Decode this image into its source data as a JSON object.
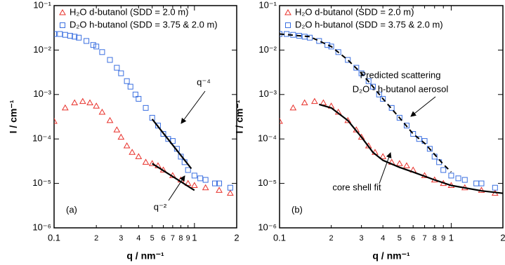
{
  "chart_data": [
    {
      "type": "scatter",
      "log_x": true,
      "log_y": true,
      "legend": "upper left",
      "panel": "(a)",
      "xlabel": "q / nm⁻¹",
      "ylabel": "I / cm⁻¹",
      "xlim": [
        0.1,
        2
      ],
      "ylim": [
        1e-06,
        0.1
      ],
      "xticks": [
        {
          "value": 0.1,
          "label": "0.1"
        },
        {
          "value": 0.2,
          "label": "2"
        },
        {
          "value": 0.3,
          "label": "3"
        },
        {
          "value": 0.4,
          "label": "4"
        },
        {
          "value": 0.5,
          "label": "5"
        },
        {
          "value": 0.6,
          "label": "6"
        },
        {
          "value": 0.7,
          "label": "7"
        },
        {
          "value": 0.8,
          "label": "8"
        },
        {
          "value": 0.9,
          "label": "9"
        },
        1,
        2
      ],
      "yticks": [
        {
          "value": 1e-06,
          "label": "10⁻⁶"
        },
        {
          "value": 1e-05,
          "label": "10⁻⁵"
        },
        {
          "value": 0.0001,
          "label": "10⁻⁴"
        },
        {
          "value": 0.001,
          "label": "10⁻³"
        },
        {
          "value": 0.01,
          "label": "10⁻²"
        },
        {
          "value": 0.1,
          "label": "10⁻¹"
        }
      ],
      "series": [
        {
          "name": "H₂O d-butanol (SDD = 2.0 m)",
          "color": "#e8302a",
          "marker": "triangle",
          "x": [
            0.1,
            0.12,
            0.14,
            0.16,
            0.18,
            0.2,
            0.22,
            0.25,
            0.28,
            0.3,
            0.33,
            0.36,
            0.4,
            0.45,
            0.5,
            0.55,
            0.6,
            0.7,
            0.8,
            0.9,
            1.0,
            1.2,
            1.5,
            1.8
          ],
          "values": [
            0.00025,
            0.0005,
            0.00065,
            0.0007,
            0.00065,
            0.00055,
            0.0004,
            0.00026,
            0.00016,
            0.00011,
            7e-05,
            5e-05,
            4e-05,
            3e-05,
            2.8e-05,
            2.5e-05,
            2e-05,
            1.5e-05,
            1.2e-05,
            1e-05,
            9e-06,
            8e-06,
            7e-06,
            6e-06
          ]
        },
        {
          "name": "D₂O h-butanol (SDD = 3.75 & 2.0 m)",
          "color": "#3a6fe0",
          "marker": "square",
          "x": [
            0.1,
            0.11,
            0.12,
            0.13,
            0.14,
            0.15,
            0.17,
            0.19,
            0.2,
            0.22,
            0.25,
            0.28,
            0.3,
            0.33,
            0.35,
            0.38,
            0.4,
            0.45,
            0.5,
            0.55,
            0.6,
            0.65,
            0.7,
            0.75,
            0.8,
            0.85,
            0.9,
            1.0,
            1.1,
            1.2,
            1.4,
            1.5,
            1.8
          ],
          "values": [
            0.023,
            0.023,
            0.022,
            0.021,
            0.02,
            0.019,
            0.016,
            0.013,
            0.012,
            0.009,
            0.006,
            0.004,
            0.003,
            0.002,
            0.0015,
            0.001,
            0.0008,
            0.0005,
            0.0003,
            0.0002,
            0.00013,
            0.0001,
            9e-05,
            6e-05,
            4e-05,
            3e-05,
            2e-05,
            1.5e-05,
            1.3e-05,
            1.2e-05,
            1e-05,
            1e-05,
            8e-06
          ]
        }
      ],
      "fits": [
        {
          "color": "#000000",
          "dashed": false,
          "x": [
            0.5,
            0.95
          ],
          "values": [
            0.00028,
            2.15e-05
          ]
        },
        {
          "color": "#000000",
          "dashed": false,
          "x": [
            0.5,
            1.0
          ],
          "values": [
            2.8e-05,
            7e-06
          ]
        }
      ],
      "annotations": [
        "q⁻⁴",
        "q⁻²"
      ]
    },
    {
      "type": "scatter",
      "log_x": true,
      "log_y": true,
      "legend": "upper left",
      "panel": "(b)",
      "xlabel": "q / nm⁻¹",
      "ylabel": "I / cm⁻¹",
      "xlim": [
        0.1,
        2
      ],
      "ylim": [
        1e-06,
        0.1
      ],
      "xticks": [
        {
          "value": 0.1,
          "label": "0.1"
        },
        {
          "value": 0.2,
          "label": "2"
        },
        {
          "value": 0.3,
          "label": "3"
        },
        {
          "value": 0.4,
          "label": "4"
        },
        {
          "value": 0.5,
          "label": "5"
        },
        {
          "value": 0.6,
          "label": "6"
        },
        {
          "value": 0.7,
          "label": "7"
        },
        {
          "value": 0.8,
          "label": "8"
        },
        {
          "value": 0.9,
          "label": "9"
        },
        1,
        2
      ],
      "yticks": [
        {
          "value": 1e-06,
          "label": "10⁻⁶"
        },
        {
          "value": 1e-05,
          "label": "10⁻⁵"
        },
        {
          "value": 0.0001,
          "label": "10⁻⁴"
        },
        {
          "value": 0.001,
          "label": "10⁻³"
        },
        {
          "value": 0.01,
          "label": "10⁻²"
        },
        {
          "value": 0.1,
          "label": "10⁻¹"
        }
      ],
      "series": [
        {
          "name": "H₂O d-butanol (SDD = 2.0 m)",
          "color": "#e8302a",
          "marker": "triangle",
          "x": [
            0.1,
            0.12,
            0.14,
            0.16,
            0.18,
            0.2,
            0.22,
            0.25,
            0.28,
            0.3,
            0.33,
            0.36,
            0.4,
            0.45,
            0.5,
            0.55,
            0.6,
            0.7,
            0.8,
            0.9,
            1.0,
            1.2,
            1.5,
            1.8
          ],
          "values": [
            0.00025,
            0.0005,
            0.00065,
            0.0007,
            0.00065,
            0.00055,
            0.0004,
            0.00026,
            0.00016,
            0.00011,
            7e-05,
            5e-05,
            4e-05,
            3e-05,
            2.8e-05,
            2.5e-05,
            2e-05,
            1.5e-05,
            1.2e-05,
            1e-05,
            9e-06,
            8e-06,
            7e-06,
            6e-06
          ]
        },
        {
          "name": "D₂O h-butanol (SDD = 3.75 & 2.0 m)",
          "color": "#3a6fe0",
          "marker": "square",
          "x": [
            0.1,
            0.11,
            0.12,
            0.13,
            0.14,
            0.15,
            0.17,
            0.19,
            0.2,
            0.22,
            0.25,
            0.28,
            0.3,
            0.33,
            0.35,
            0.38,
            0.4,
            0.45,
            0.5,
            0.55,
            0.6,
            0.65,
            0.7,
            0.75,
            0.8,
            0.85,
            0.9,
            1.0,
            1.1,
            1.2,
            1.4,
            1.5,
            1.8
          ],
          "values": [
            0.023,
            0.023,
            0.022,
            0.021,
            0.02,
            0.019,
            0.016,
            0.013,
            0.012,
            0.009,
            0.006,
            0.004,
            0.003,
            0.002,
            0.0015,
            0.001,
            0.0008,
            0.0005,
            0.0003,
            0.0002,
            0.00013,
            0.0001,
            9e-05,
            6e-05,
            4e-05,
            3e-05,
            2e-05,
            1.5e-05,
            1.3e-05,
            1.2e-05,
            1e-05,
            1e-05,
            8e-06
          ]
        }
      ],
      "fits": [
        {
          "color": "#000000",
          "dashed": true,
          "x": [
            0.1,
            0.15,
            0.2,
            0.25,
            0.3,
            0.35,
            0.4,
            0.5,
            0.6,
            0.7,
            0.8,
            0.9,
            1.0
          ],
          "values": [
            0.023,
            0.02,
            0.012,
            0.006,
            0.003,
            0.0015,
            0.0008,
            0.0003,
            0.00013,
            8e-05,
            4.5e-05,
            2.7e-05,
            1.8e-05
          ]
        },
        {
          "color": "#000000",
          "dashed": false,
          "x": [
            0.17,
            0.2,
            0.25,
            0.3,
            0.35,
            0.4,
            0.5,
            0.6,
            0.8,
            1.0,
            1.5,
            2.0
          ],
          "values": [
            0.0006,
            0.0005,
            0.00026,
            0.00011,
            5e-05,
            3.3e-05,
            2.3e-05,
            1.8e-05,
            1.2e-05,
            9e-06,
            6.8e-06,
            6e-06
          ]
        }
      ],
      "annotations": [
        "Predicted scattering",
        "D₂O - h-butanol aerosol",
        "core shell fit"
      ]
    }
  ]
}
